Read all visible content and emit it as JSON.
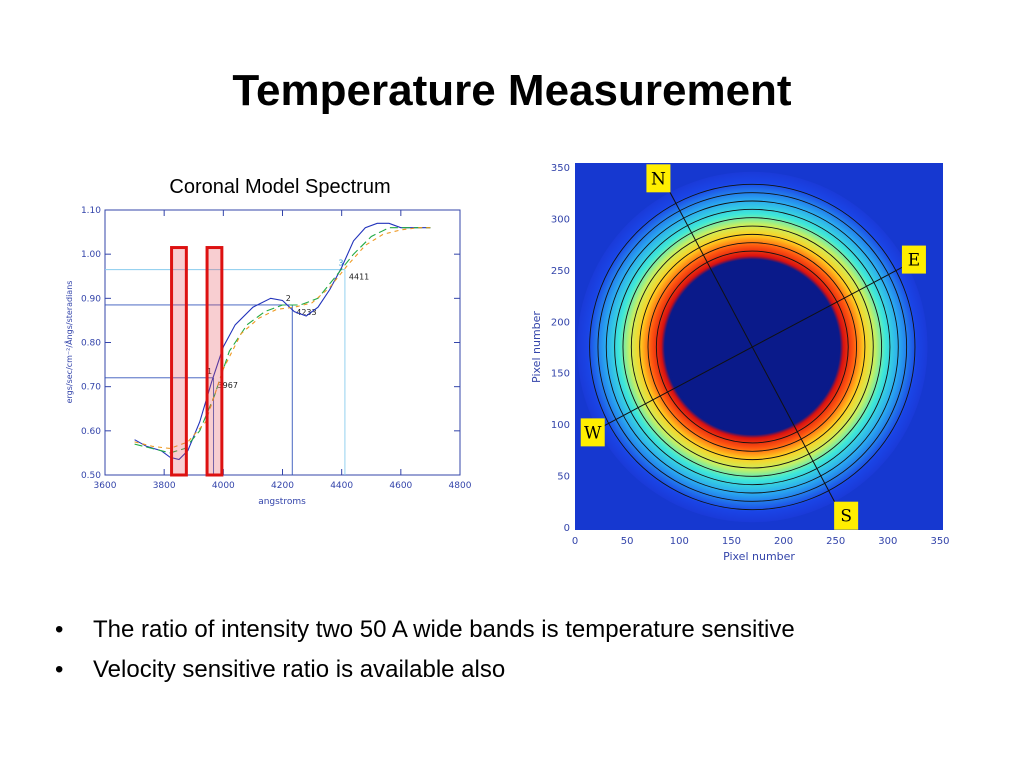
{
  "slide": {
    "title": "Temperature Measurement",
    "bullet_glyph": "•",
    "bullets": [
      "The ratio of intensity two 50 A wide bands is temperature sensitive",
      "Velocity sensitive ratio is available also"
    ]
  },
  "chart_data": [
    {
      "type": "line",
      "title": "Coronal Model Spectrum",
      "xlabel": "angstroms",
      "ylabel": "ergs/sec/cm⁻²/Ångs/steradians",
      "xlim": [
        3600,
        4800
      ],
      "ylim": [
        0.5,
        1.1
      ],
      "xticks": [
        "3600",
        "3800",
        "4000",
        "4200",
        "4400",
        "4600",
        "4800"
      ],
      "yticks": [
        "0.50",
        "0.60",
        "0.70",
        "0.80",
        "0.90",
        "1.00",
        "1.10"
      ],
      "series": [
        {
          "color": "#2233bb",
          "dash": "solid",
          "x": [
            3700,
            3740,
            3790,
            3820,
            3850,
            3880,
            3920,
            3960,
            4000,
            4040,
            4100,
            4160,
            4200,
            4240,
            4280,
            4320,
            4360,
            4400,
            4440,
            4480,
            4520,
            4560,
            4600,
            4650,
            4700
          ],
          "y": [
            0.58,
            0.565,
            0.555,
            0.54,
            0.535,
            0.555,
            0.62,
            0.71,
            0.79,
            0.84,
            0.88,
            0.9,
            0.895,
            0.87,
            0.86,
            0.88,
            0.92,
            0.97,
            1.03,
            1.06,
            1.07,
            1.07,
            1.06,
            1.06,
            1.06
          ]
        },
        {
          "color": "#22aa44",
          "dash": "8,4",
          "x": [
            3700,
            3760,
            3820,
            3870,
            3920,
            3970,
            4020,
            4080,
            4140,
            4200,
            4260,
            4320,
            4380,
            4440,
            4500,
            4560,
            4620,
            4680,
            4700
          ],
          "y": [
            0.57,
            0.56,
            0.55,
            0.56,
            0.6,
            0.68,
            0.78,
            0.84,
            0.87,
            0.885,
            0.885,
            0.9,
            0.95,
            1.0,
            1.04,
            1.06,
            1.06,
            1.06,
            1.06
          ]
        },
        {
          "color": "#ee9922",
          "dash": "4,4",
          "x": [
            3700,
            3760,
            3820,
            3880,
            3940,
            4000,
            4060,
            4120,
            4180,
            4240,
            4300,
            4360,
            4420,
            4480,
            4540,
            4600,
            4660,
            4700
          ],
          "y": [
            0.575,
            0.565,
            0.56,
            0.575,
            0.62,
            0.74,
            0.82,
            0.855,
            0.875,
            0.88,
            0.89,
            0.925,
            0.975,
            1.02,
            1.045,
            1.055,
            1.06,
            1.06
          ]
        }
      ],
      "band_rectangles": [
        {
          "x": [
            3825,
            3875
          ],
          "color": "#dd1111"
        },
        {
          "x": [
            3945,
            3995
          ],
          "color": "#dd1111"
        }
      ],
      "reference_points": [
        {
          "label": "1",
          "value_label": "3967",
          "x": 3967,
          "y": 0.72
        },
        {
          "label": "2",
          "value_label": "4233",
          "x": 4233,
          "y": 0.885
        },
        {
          "label": "3",
          "value_label": "4411",
          "x": 4411,
          "y": 0.965
        }
      ]
    },
    {
      "type": "heatmap",
      "xlabel": "Pixel number",
      "ylabel": "Pixel number",
      "xlim": [
        0,
        350
      ],
      "ylim": [
        0,
        350
      ],
      "xticks": [
        "0",
        "50",
        "100",
        "150",
        "200",
        "250",
        "300",
        "350"
      ],
      "yticks": [
        "0",
        "50",
        "100",
        "150",
        "200",
        "250",
        "300",
        "350"
      ],
      "colormap": [
        "#0a1a8a",
        "#1a44e6",
        "#2aa8f0",
        "#3fe8d8",
        "#c8f060",
        "#ffd020",
        "#ff5a10",
        "#d81010"
      ],
      "disk_center": [
        170,
        175
      ],
      "ring_radii": [
        92,
        100,
        108,
        116,
        124,
        132,
        140,
        148,
        156
      ],
      "direction_labels": [
        "N",
        "E",
        "S",
        "W"
      ],
      "label_color": "#ffee00"
    }
  ]
}
